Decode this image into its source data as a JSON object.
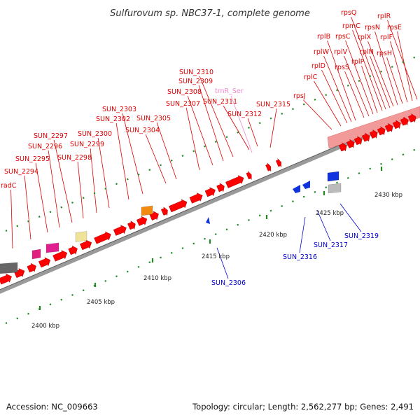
{
  "title": "Sulfurovum sp. NBC37-1, complete genome",
  "footer": {
    "accession": "Accession: NC_009663",
    "summary": "Topology: circular; Length: 2,562,277 bp; Genes: 2,491"
  },
  "colors": {
    "forward_label": "#dd0000",
    "reverse_label": "#0000cc",
    "rna_label": "#ee88cc",
    "forward_gene": "#ff0000",
    "reverse_gene": "#0033cc",
    "backbone": "#999999",
    "tick": "#228822"
  },
  "kbp_ticks": [
    "2400 kbp",
    "2405 kbp",
    "2410 kbp",
    "2415 kbp",
    "2420 kbp",
    "2425 kbp",
    "2430 kbp"
  ],
  "forward_labels": [
    "radC",
    "SUN_2294",
    "SUN_2295",
    "SUN_2296",
    "SUN_2297",
    "SUN_2298",
    "SUN_2299",
    "SUN_2300",
    "SUN_2302",
    "SUN_2303",
    "SUN_2304",
    "SUN_2305",
    "SUN_2307",
    "SUN_2308",
    "SUN_2309",
    "SUN_2310",
    "SUN_2311",
    "SUN_2312",
    "SUN_2315",
    "rpsJ",
    "rplC",
    "rplD",
    "rplW",
    "rplB",
    "rpsS",
    "rplV",
    "rpsC",
    "rplP",
    "rpmC",
    "rpsQ",
    "rplN",
    "rplX",
    "rpsN",
    "rpsH",
    "rplF",
    "rpsE",
    "rplR"
  ],
  "rna_labels": [
    "trnR_Ser"
  ],
  "reverse_labels": [
    "SUN_2306",
    "SUN_2316",
    "SUN_2317",
    "SUN_2319"
  ]
}
